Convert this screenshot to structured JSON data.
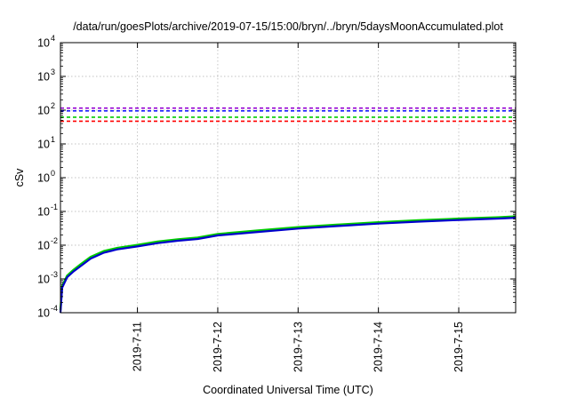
{
  "chart_data": {
    "type": "line",
    "title": "/data/run/goesPlots/archive/2019-07-15/15:00/bryn/../bryn/5daysMoonAccumulated.plot",
    "xlabel": "Coordinated Universal Time (UTC)",
    "ylabel": "cSv",
    "y_scale": "log",
    "ylim": [
      0.0001,
      10000
    ],
    "xlim": [
      "2019-07-10T01:00",
      "2019-07-15T17:00"
    ],
    "grid": true,
    "x_ticks": [
      "2019-7-11",
      "2019-7-12",
      "2019-7-13",
      "2019-7-14",
      "2019-7-15"
    ],
    "y_ticks": [
      {
        "base": "10",
        "exp": "-4",
        "value": 0.0001
      },
      {
        "base": "10",
        "exp": "-3",
        "value": 0.001
      },
      {
        "base": "10",
        "exp": "-2",
        "value": 0.01
      },
      {
        "base": "10",
        "exp": "-1",
        "value": 0.1
      },
      {
        "base": "10",
        "exp": "0",
        "value": 1
      },
      {
        "base": "10",
        "exp": "1",
        "value": 10
      },
      {
        "base": "10",
        "exp": "2",
        "value": 100
      },
      {
        "base": "10",
        "exp": "3",
        "value": 1000
      },
      {
        "base": "10",
        "exp": "4",
        "value": 10000
      }
    ],
    "thresholds": [
      {
        "value": 115,
        "color": "#9400d3"
      },
      {
        "value": 95,
        "color": "#1a1aff"
      },
      {
        "value": 62,
        "color": "#00cc00"
      },
      {
        "value": 47,
        "color": "#ff0000"
      }
    ],
    "series": [
      {
        "color": "#00cc00",
        "x": [
          "2019-07-10T01:00",
          "2019-07-10T01:30",
          "2019-07-10T03:00",
          "2019-07-10T05:00",
          "2019-07-10T07:00",
          "2019-07-10T10:00",
          "2019-07-10T14:00",
          "2019-07-10T18:00",
          "2019-07-11T00:00",
          "2019-07-11T06:00",
          "2019-07-11T12:00",
          "2019-07-11T18:00",
          "2019-07-12T00:00",
          "2019-07-12T12:00",
          "2019-07-13T00:00",
          "2019-07-13T12:00",
          "2019-07-14T00:00",
          "2019-07-14T12:00",
          "2019-07-15T00:00",
          "2019-07-15T12:00",
          "2019-07-15T17:00"
        ],
        "y": [
          0.00012,
          0.00062,
          0.00125,
          0.0019,
          0.0027,
          0.0045,
          0.0067,
          0.0083,
          0.0102,
          0.0128,
          0.0148,
          0.0168,
          0.0215,
          0.0272,
          0.0342,
          0.0408,
          0.0478,
          0.0545,
          0.0612,
          0.0672,
          0.0712
        ]
      },
      {
        "color": "#0000cc",
        "x": [
          "2019-07-10T01:00",
          "2019-07-10T01:30",
          "2019-07-10T03:00",
          "2019-07-10T05:00",
          "2019-07-10T07:00",
          "2019-07-10T10:00",
          "2019-07-10T14:00",
          "2019-07-10T18:00",
          "2019-07-11T00:00",
          "2019-07-11T06:00",
          "2019-07-11T12:00",
          "2019-07-11T18:00",
          "2019-07-12T00:00",
          "2019-07-12T12:00",
          "2019-07-13T00:00",
          "2019-07-13T12:00",
          "2019-07-14T00:00",
          "2019-07-14T12:00",
          "2019-07-15T00:00",
          "2019-07-15T12:00",
          "2019-07-15T17:00"
        ],
        "y": [
          0.0001,
          0.00055,
          0.00112,
          0.0017,
          0.0024,
          0.004,
          0.006,
          0.0075,
          0.0092,
          0.0115,
          0.0135,
          0.0153,
          0.0195,
          0.0247,
          0.031,
          0.037,
          0.0435,
          0.0498,
          0.056,
          0.0615,
          0.0652
        ]
      }
    ]
  }
}
